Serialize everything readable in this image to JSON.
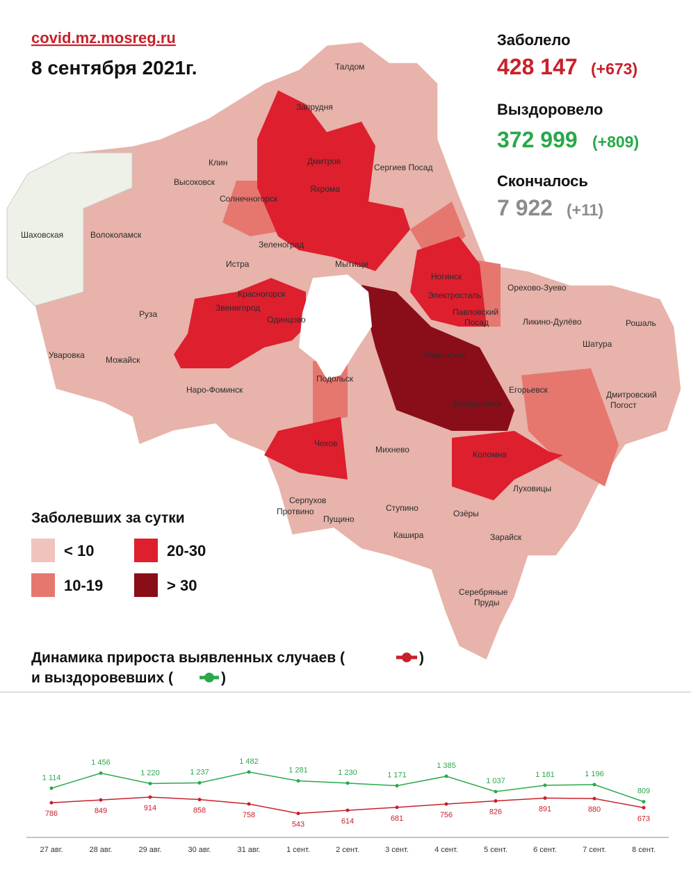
{
  "header": {
    "source": "covid.mz.mosreg.ru",
    "date": "8 сентября 2021г."
  },
  "stats": [
    {
      "label": "Заболело",
      "value": "428 147",
      "delta": "(+673)"
    },
    {
      "label": "Выздоровело",
      "value": "372 999",
      "delta": "(+809)"
    },
    {
      "label": "Скончалось",
      "value": "7 922",
      "delta": "(+11)"
    }
  ],
  "legend": {
    "title": "Заболевших за сутки",
    "items": [
      {
        "label": "< 10",
        "color": "#f0c3bd"
      },
      {
        "label": "10-19",
        "color": "#e5776f"
      },
      {
        "label": "20-30",
        "color": "#dd1f2e"
      },
      {
        "label": "> 30",
        "color": "#8a0e1a"
      }
    ]
  },
  "map": {
    "labels": [
      "Талдом",
      "Запрудня",
      "Клин",
      "Дмитров",
      "Сергиев Посад",
      "Высоковск",
      "Яхрома",
      "Солнечногорск",
      "Шаховская",
      "Волоколамск",
      "Зеленоград",
      "Мытищи",
      "Истра",
      "Ногинск",
      "Орехово-Зуево",
      "Красногорск",
      "Электросталь",
      "Павловский",
      "Посад",
      "Звенигород",
      "Одинцово",
      "Руза",
      "Ликино-Дулёво",
      "Рошаль",
      "Уваровка",
      "Можайск",
      "Раменское",
      "Шатура",
      "Подольск",
      "Егорьевск",
      "Наро-Фоминск",
      "Воскресенск",
      "Дмитровский",
      "Погост",
      "Чехов",
      "Михнево",
      "Коломна",
      "Серпухов",
      "Луховицы",
      "Ступино",
      "Озёры",
      "Пущино",
      "Протвино",
      "Кашира",
      "Зарайск",
      "Серебряные",
      "Пруды"
    ]
  },
  "chart_data": {
    "type": "line",
    "title": [
      "Динамика прироста выявленных случаев (",
      ")",
      "и выздоровевших (",
      ")"
    ],
    "categories": [
      "27 авг.",
      "28 авг.",
      "29 авг.",
      "30 авг.",
      "31 авг.",
      "1 сент.",
      "2 сент.",
      "3 сент.",
      "4 сент.",
      "5 сент.",
      "6 сент.",
      "7 сент.",
      "8 сент."
    ],
    "ylim": [
      0,
      2000
    ],
    "series": [
      {
        "color": "#2aa84a",
        "values": [
          1114,
          1456,
          1220,
          1237,
          1482,
          1281,
          1230,
          1171,
          1385,
          1037,
          1181,
          1196,
          809
        ],
        "value_labels": [
          "1 114",
          "1 456",
          "1 220",
          "1 237",
          "1 482",
          "1 281",
          "1 230",
          "1 171",
          "1 385",
          "1 037",
          "1 181",
          "1 196",
          "809"
        ]
      },
      {
        "color": "#c8202a",
        "values": [
          786,
          849,
          914,
          858,
          758,
          543,
          614,
          681,
          756,
          826,
          891,
          880,
          673
        ]
      }
    ]
  }
}
